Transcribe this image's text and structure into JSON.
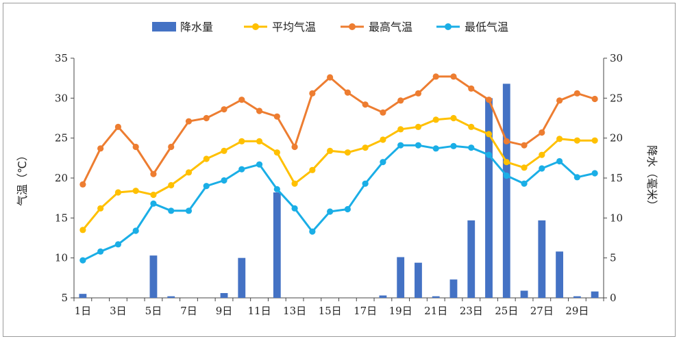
{
  "chart_data": {
    "type": "bar+line",
    "categories": [
      "1日",
      "2日",
      "3日",
      "4日",
      "5日",
      "6日",
      "7日",
      "8日",
      "9日",
      "10日",
      "11日",
      "12日",
      "13日",
      "14日",
      "15日",
      "16日",
      "17日",
      "18日",
      "19日",
      "20日",
      "21日",
      "22日",
      "23日",
      "24日",
      "25日",
      "26日",
      "27日",
      "28日",
      "29日",
      "30日"
    ],
    "x_tick_labels": [
      "1日",
      "3日",
      "5日",
      "7日",
      "9日",
      "11日",
      "13日",
      "15日",
      "17日",
      "19日",
      "21日",
      "23日",
      "25日",
      "27日",
      "29日"
    ],
    "y_left": {
      "label": "气温（℃）",
      "lim": [
        5,
        35
      ],
      "ticks": [
        5,
        10,
        15,
        20,
        25,
        30,
        35
      ]
    },
    "y_right": {
      "label": "降水（毫米）",
      "lim": [
        0,
        30
      ],
      "ticks": [
        0,
        5,
        10,
        15,
        20,
        25,
        30
      ]
    },
    "legend_position": "top-center",
    "series": [
      {
        "name": "降水量",
        "type": "bar",
        "axis": "right",
        "color": "#4472c4",
        "values": [
          0.5,
          0,
          0,
          0,
          5.3,
          0.2,
          0,
          0,
          0.6,
          5.0,
          0,
          13.2,
          0,
          0,
          0,
          0,
          0,
          0.3,
          5.1,
          4.4,
          0.2,
          2.3,
          9.7,
          25.0,
          26.8,
          0.9,
          9.7,
          5.8,
          0.2,
          0.8
        ]
      },
      {
        "name": "平均气温",
        "type": "line",
        "axis": "left",
        "color": "#ffc000",
        "values": [
          13.5,
          16.2,
          18.2,
          18.4,
          17.9,
          19.1,
          20.7,
          22.4,
          23.4,
          24.6,
          24.6,
          23.2,
          19.3,
          21.0,
          23.4,
          23.2,
          23.8,
          24.8,
          26.1,
          26.4,
          27.3,
          27.5,
          26.4,
          25.5,
          22.0,
          21.3,
          22.9,
          24.9,
          24.7,
          24.7
        ]
      },
      {
        "name": "最高气温",
        "type": "line",
        "axis": "left",
        "color": "#ed7d31",
        "values": [
          19.2,
          23.7,
          26.4,
          23.9,
          20.5,
          23.9,
          27.1,
          27.5,
          28.6,
          29.8,
          28.4,
          27.7,
          23.9,
          30.6,
          32.6,
          30.7,
          29.2,
          28.2,
          29.7,
          30.6,
          32.7,
          32.7,
          31.2,
          29.8,
          24.6,
          24.1,
          25.7,
          29.7,
          30.6,
          29.9
        ]
      },
      {
        "name": "最低气温",
        "type": "line",
        "axis": "left",
        "color": "#1aaee6",
        "values": [
          9.7,
          10.8,
          11.7,
          13.4,
          16.8,
          15.9,
          15.9,
          19.0,
          19.7,
          21.1,
          21.7,
          18.6,
          16.2,
          13.3,
          15.8,
          16.1,
          19.3,
          22.0,
          24.1,
          24.1,
          23.7,
          24.0,
          23.8,
          22.9,
          20.3,
          19.3,
          21.2,
          22.1,
          20.1,
          20.6
        ]
      }
    ]
  }
}
